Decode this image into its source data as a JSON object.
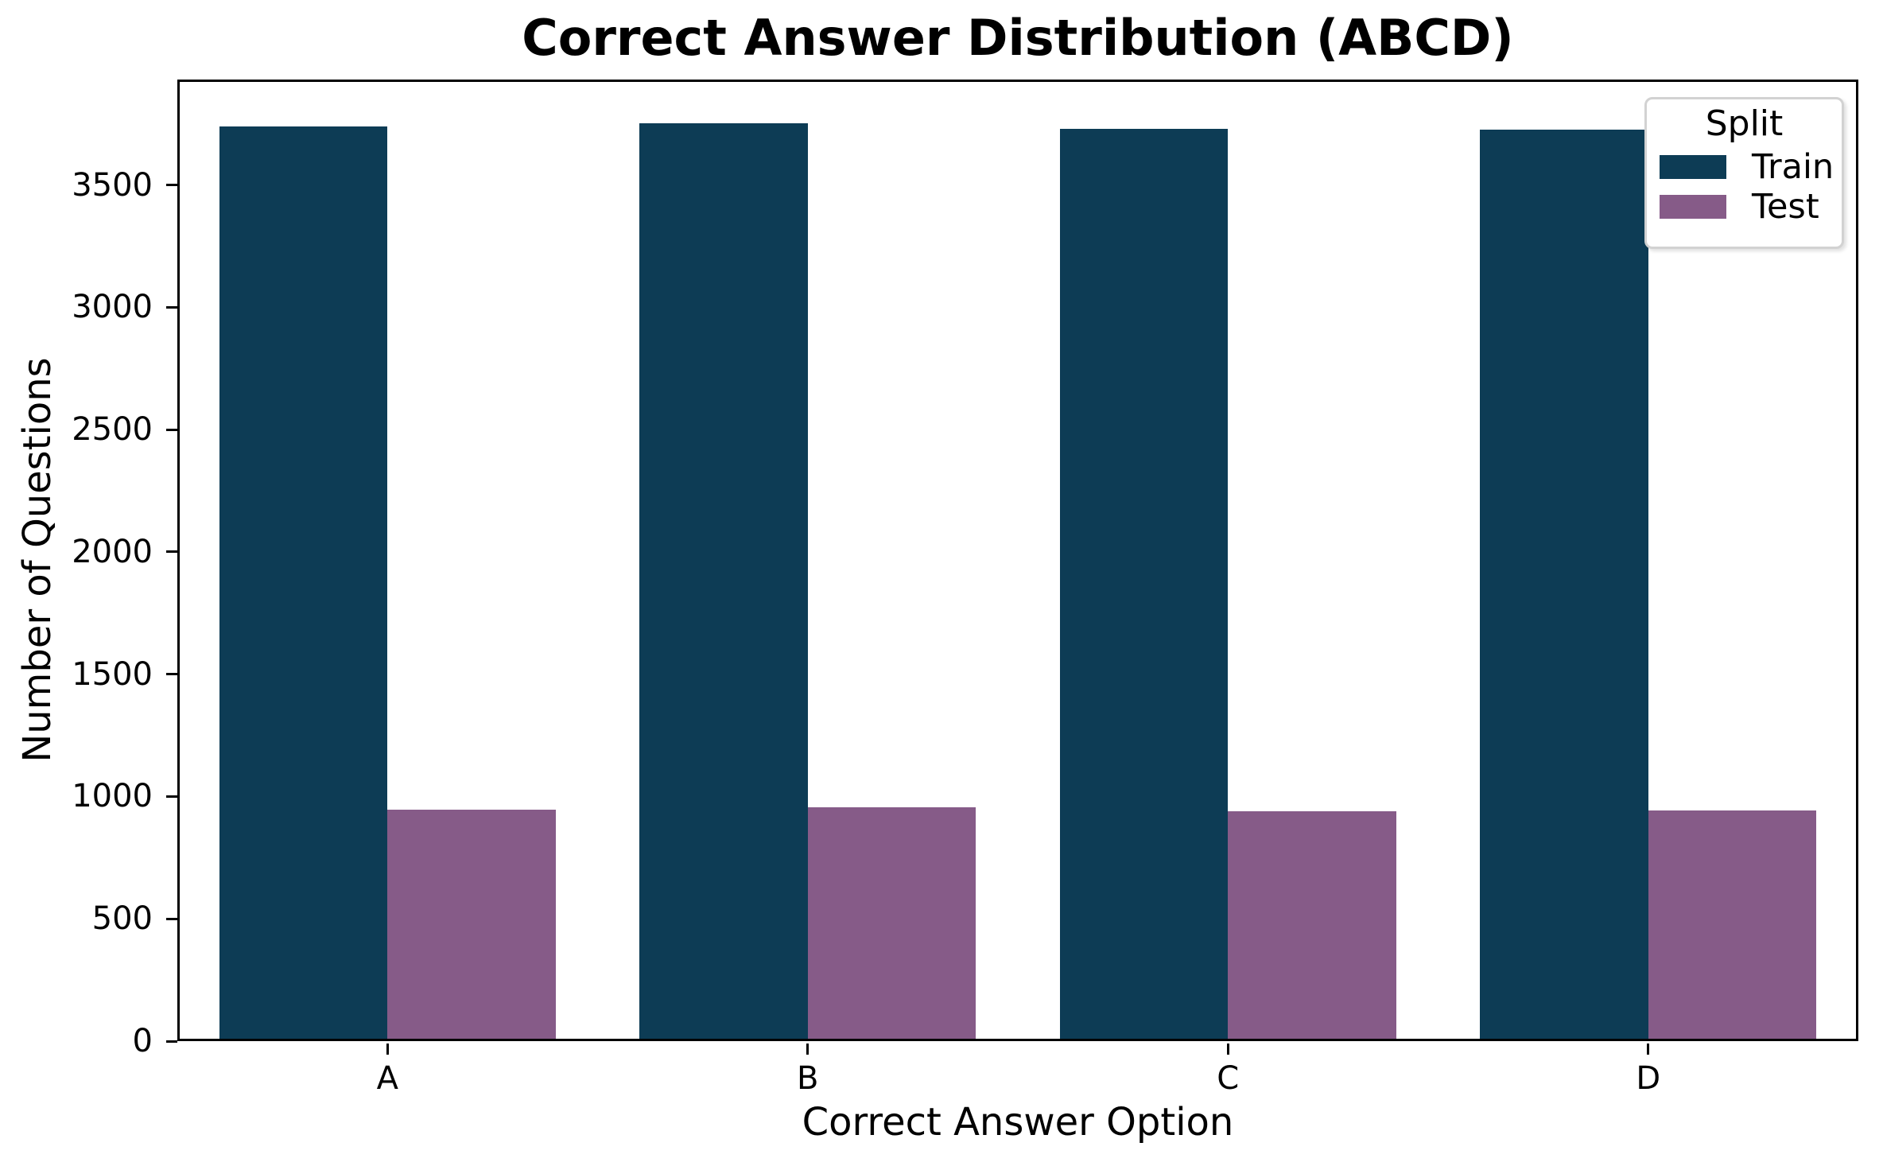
{
  "chart_data": {
    "type": "bar",
    "title": "Correct Answer Distribution (ABCD)",
    "xlabel": "Correct Answer Option",
    "ylabel": "Number of Questions",
    "categories": [
      "A",
      "B",
      "C",
      "D"
    ],
    "series": [
      {
        "name": "Train",
        "color": "#0d3c55",
        "values": [
          3728,
          3744,
          3721,
          3718
        ]
      },
      {
        "name": "Test",
        "color": "#865b88",
        "values": [
          937,
          947,
          930,
          933
        ]
      }
    ],
    "legend_title": "Split",
    "legend_position": "upper right",
    "ylim": [
      0,
      3931
    ],
    "yticks": [
      0,
      500,
      1000,
      1500,
      2000,
      2500,
      3000,
      3500
    ],
    "grid": false,
    "bar_group_width_fraction": 0.8,
    "background_color": "#ffffff",
    "spine_color": "#000000"
  }
}
